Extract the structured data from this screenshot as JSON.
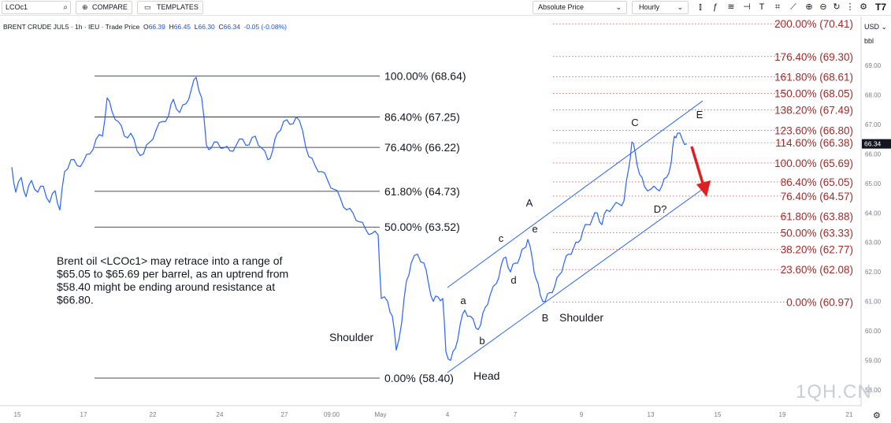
{
  "toolbar": {
    "symbol": "LCOc1",
    "compare_label": "COMPARE",
    "templates_label": "TEMPLATES",
    "price_mode": "Absolute Price",
    "interval": "Hourly",
    "currency": "USD",
    "unit": "bbl",
    "logo": "T7"
  },
  "infoline": {
    "name": "BRENT CRUDE JUL5",
    "interval": "1h",
    "exchange": "IEU",
    "type": "Trade Price",
    "open_label": "O",
    "open": "66.39",
    "high_label": "H",
    "high": "66.45",
    "low_label": "L",
    "low": "66.30",
    "close_label": "C",
    "close": "66.34",
    "change": "-0.05 (-0.08%)"
  },
  "watermark": "1QH.CN",
  "chart_data": {
    "type": "line",
    "title": "",
    "xlabel": "",
    "ylabel": "",
    "ylim": [
      58.0,
      70.7
    ],
    "y_ticks": [
      "69.00",
      "68.00",
      "67.00",
      "66.00",
      "65.00",
      "64.00",
      "63.00",
      "62.00",
      "61.00",
      "60.00",
      "59.00",
      "58.00"
    ],
    "x_ticks": [
      "15",
      "17",
      "22",
      "24",
      "27",
      "09:00",
      "May",
      "4",
      "7",
      "9",
      "13",
      "15",
      "19",
      "21"
    ],
    "last_price": "66.34",
    "series": [
      {
        "values": [
          [
            15,
            65.55
          ],
          [
            20,
            64.7
          ],
          [
            27,
            65.2
          ],
          [
            33,
            64.55
          ],
          [
            40,
            65.1
          ],
          [
            48,
            64.7
          ],
          [
            55,
            64.9
          ],
          [
            63,
            64.35
          ],
          [
            70,
            64.75
          ],
          [
            76,
            64.1
          ],
          [
            82,
            65.4
          ],
          [
            90,
            65.8
          ],
          [
            98,
            65.6
          ],
          [
            106,
            65.75
          ],
          [
            114,
            66.0
          ],
          [
            122,
            66.5
          ],
          [
            130,
            66.6
          ],
          [
            136,
            67.9
          ],
          [
            142,
            67.45
          ],
          [
            150,
            67.1
          ],
          [
            158,
            66.6
          ],
          [
            166,
            66.7
          ],
          [
            174,
            66.1
          ],
          [
            182,
            66.0
          ],
          [
            190,
            66.4
          ],
          [
            198,
            66.8
          ],
          [
            206,
            67.1
          ],
          [
            214,
            67.3
          ],
          [
            220,
            67.85
          ],
          [
            228,
            67.4
          ],
          [
            236,
            67.7
          ],
          [
            243,
            68.2
          ],
          [
            249,
            68.6
          ],
          [
            256,
            67.9
          ],
          [
            262,
            66.3
          ],
          [
            268,
            66.2
          ],
          [
            276,
            66.4
          ],
          [
            284,
            66.2
          ],
          [
            292,
            66.1
          ],
          [
            300,
            66.3
          ],
          [
            308,
            66.5
          ],
          [
            316,
            66.3
          ],
          [
            324,
            66.6
          ],
          [
            332,
            66.2
          ],
          [
            340,
            65.8
          ],
          [
            346,
            66.1
          ],
          [
            352,
            66.7
          ],
          [
            360,
            67.1
          ],
          [
            368,
            67.0
          ],
          [
            376,
            67.25
          ],
          [
            384,
            66.8
          ],
          [
            392,
            65.9
          ],
          [
            400,
            65.6
          ],
          [
            408,
            65.4
          ],
          [
            416,
            65.1
          ],
          [
            424,
            64.8
          ],
          [
            432,
            64.5
          ],
          [
            440,
            64.1
          ],
          [
            448,
            64.0
          ],
          [
            456,
            63.7
          ],
          [
            464,
            63.45
          ],
          [
            472,
            63.3
          ],
          [
            480,
            63.25
          ],
          [
            484,
            61.1
          ],
          [
            492,
            61.0
          ],
          [
            498,
            60.5
          ],
          [
            503,
            59.35
          ],
          [
            510,
            60.3
          ],
          [
            516,
            61.7
          ],
          [
            522,
            62.3
          ],
          [
            530,
            62.6
          ],
          [
            538,
            62.3
          ],
          [
            544,
            61.6
          ],
          [
            550,
            61.0
          ],
          [
            556,
            61.15
          ],
          [
            562,
            61.1
          ],
          [
            566,
            59.3
          ],
          [
            572,
            59.0
          ],
          [
            578,
            59.4
          ],
          [
            584,
            60.2
          ],
          [
            590,
            60.7
          ],
          [
            597,
            60.5
          ],
          [
            604,
            60.1
          ],
          [
            610,
            60.2
          ],
          [
            616,
            60.8
          ],
          [
            622,
            61.2
          ],
          [
            630,
            61.6
          ],
          [
            636,
            62.2
          ],
          [
            642,
            62.5
          ],
          [
            648,
            62.0
          ],
          [
            654,
            62.3
          ],
          [
            660,
            62.5
          ],
          [
            665,
            62.8
          ],
          [
            670,
            63.1
          ],
          [
            676,
            62.4
          ],
          [
            680,
            61.8
          ],
          [
            686,
            61.2
          ],
          [
            692,
            61.0
          ],
          [
            698,
            61.3
          ],
          [
            704,
            61.5
          ],
          [
            710,
            61.9
          ],
          [
            716,
            62.3
          ],
          [
            722,
            62.6
          ],
          [
            728,
            62.8
          ],
          [
            734,
            63.0
          ],
          [
            740,
            63.4
          ],
          [
            746,
            63.6
          ],
          [
            752,
            63.8
          ],
          [
            758,
            64.0
          ],
          [
            764,
            63.6
          ],
          [
            770,
            64.1
          ],
          [
            778,
            64.2
          ],
          [
            786,
            64.3
          ],
          [
            792,
            64.4
          ],
          [
            798,
            65.5
          ],
          [
            802,
            66.4
          ],
          [
            806,
            66.1
          ],
          [
            812,
            65.3
          ],
          [
            818,
            64.9
          ],
          [
            826,
            64.8
          ],
          [
            834,
            64.8
          ],
          [
            840,
            64.9
          ],
          [
            846,
            65.2
          ],
          [
            852,
            65.7
          ],
          [
            856,
            66.6
          ],
          [
            860,
            66.7
          ],
          [
            866,
            66.5
          ],
          [
            872,
            66.34
          ]
        ]
      }
    ],
    "fib_left": [
      {
        "label": "100.00% (68.64)",
        "value": 68.64
      },
      {
        "label": "86.40% (67.25)",
        "value": 67.25
      },
      {
        "label": "76.40% (66.22)",
        "value": 66.22
      },
      {
        "label": "61.80% (64.73)",
        "value": 64.73
      },
      {
        "label": "50.00% (63.52)",
        "value": 63.52
      },
      {
        "label": "0.00% (58.40)",
        "value": 58.4
      }
    ],
    "fib_right": [
      {
        "label": "200.00% (70.41)",
        "value": 70.41
      },
      {
        "label": "176.40% (69.30)",
        "value": 69.3
      },
      {
        "label": "161.80% (68.61)",
        "value": 68.61
      },
      {
        "label": "150.00% (68.05)",
        "value": 68.05
      },
      {
        "label": "138.20% (67.49)",
        "value": 67.49
      },
      {
        "label": "123.60% (66.80)",
        "value": 66.8
      },
      {
        "label": "114.60% (66.38)",
        "value": 66.38
      },
      {
        "label": "100.00% (65.69)",
        "value": 65.69
      },
      {
        "label": "86.40% (65.05)",
        "value": 65.05
      },
      {
        "label": "76.40% (64.57)",
        "value": 64.57
      },
      {
        "label": "61.80% (63.88)",
        "value": 63.88
      },
      {
        "label": "50.00% (63.33)",
        "value": 63.33
      },
      {
        "label": "38.20% (62.77)",
        "value": 62.77
      },
      {
        "label": "23.60% (62.08)",
        "value": 62.08
      },
      {
        "label": "0.00% (60.97)",
        "value": 60.97
      }
    ],
    "wave_labels": [
      "A",
      "B",
      "C",
      "D?",
      "E",
      "a",
      "b",
      "c",
      "d",
      "e"
    ],
    "pattern_labels": [
      "Shoulder",
      "Head",
      "Shoulder"
    ],
    "annotation": "Brent oil <LCOc1> may retrace into a range of $65.05 to $65.69 per barrel, as an uptrend from $58.40 might be ending around resistance at $66.80."
  },
  "colors": {
    "price_line": "#2962ff",
    "fib_right": "#a52a2a",
    "fib_left": "#131722",
    "arrow": "#e02020",
    "price_tag_bg": "#131722"
  }
}
